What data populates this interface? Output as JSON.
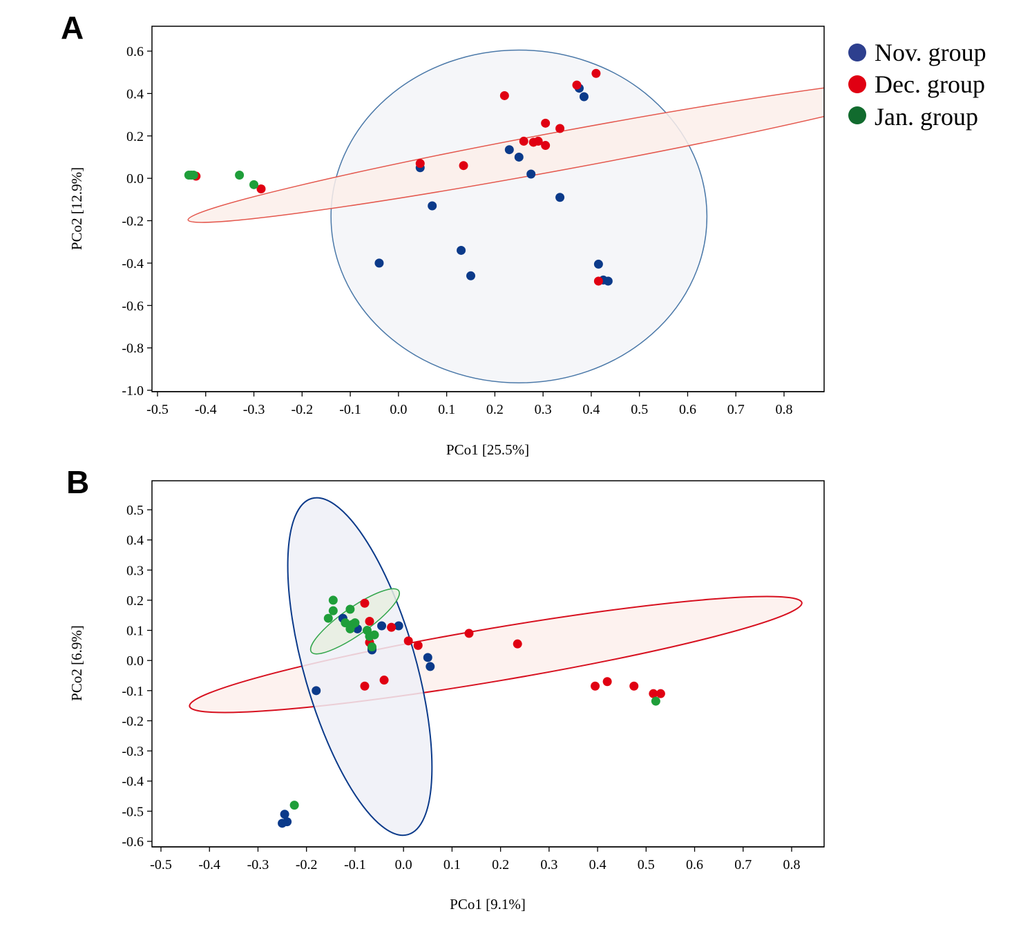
{
  "colors": {
    "nov": "#0b3a8a",
    "dec": "#e00012",
    "jan": "#1f9e3a",
    "legend_nov": "#2d3f8e",
    "legend_dec": "#e00012",
    "legend_jan": "#116b2e"
  },
  "legend": {
    "items": [
      {
        "label": "Nov. group",
        "color_key": "legend_nov"
      },
      {
        "label": "Dec. group",
        "color_key": "legend_dec"
      },
      {
        "label": "Jan. group",
        "color_key": "legend_jan"
      }
    ]
  },
  "chart_data": [
    {
      "panel": "A",
      "type": "scatter",
      "xlabel": "PCo1 [25.5%]",
      "ylabel": "PCo2 [12.9%]",
      "xlim": [
        -0.52,
        0.88
      ],
      "ylim": [
        -1.02,
        0.72
      ],
      "xticks": [
        -0.5,
        -0.4,
        -0.3,
        -0.2,
        -0.1,
        0.0,
        0.1,
        0.2,
        0.3,
        0.4,
        0.5,
        0.6,
        0.7,
        0.8
      ],
      "xtick_labels": [
        "-0.5",
        "-0.4",
        "-0.3",
        "-0.2",
        "-0.1",
        "0.0",
        "0.1",
        "0.2",
        "0.3",
        "0.4",
        "0.5",
        "0.6",
        "0.7",
        "0.8"
      ],
      "yticks": [
        0.6,
        0.4,
        0.2,
        0.0,
        -0.2,
        -0.4,
        -0.6,
        -0.8,
        -1.0
      ],
      "ytick_labels": [
        "0.6",
        "0.4",
        "0.2",
        "0.0",
        "-0.2",
        "-0.4",
        "-0.6",
        "-0.8",
        "-1.0"
      ],
      "grid": false,
      "ellipses": [
        {
          "series": "nov",
          "center": [
            0.25,
            -0.18
          ],
          "rx": 0.39,
          "ry": 0.785,
          "angle_deg": 0,
          "fill": "#f3f4f8",
          "stroke": "#4a78a8",
          "stroke_width": 1.5
        },
        {
          "series": "dec",
          "center": [
            0.35,
            0.135
          ],
          "rx": 0.8,
          "ry": 0.09,
          "angle_deg": 10.5,
          "fill": "#fcefea",
          "stroke": "#e4574d",
          "stroke_width": 1.5
        }
      ],
      "series": [
        {
          "key": "nov",
          "points": [
            [
              0.375,
              0.425
            ],
            [
              0.385,
              0.385
            ],
            [
              0.23,
              0.135
            ],
            [
              0.25,
              0.1
            ],
            [
              0.275,
              0.02
            ],
            [
              0.045,
              0.05
            ],
            [
              0.07,
              -0.13
            ],
            [
              0.335,
              -0.09
            ],
            [
              0.13,
              -0.34
            ],
            [
              0.15,
              -0.46
            ],
            [
              -0.04,
              -0.4
            ],
            [
              0.415,
              -0.405
            ],
            [
              0.425,
              -0.48
            ],
            [
              0.435,
              -0.485
            ]
          ]
        },
        {
          "key": "dec",
          "points": [
            [
              0.41,
              0.495
            ],
            [
              0.37,
              0.44
            ],
            [
              0.22,
              0.39
            ],
            [
              0.305,
              0.26
            ],
            [
              0.335,
              0.235
            ],
            [
              0.26,
              0.175
            ],
            [
              0.28,
              0.17
            ],
            [
              0.29,
              0.175
            ],
            [
              0.305,
              0.155
            ],
            [
              0.045,
              0.07
            ],
            [
              0.135,
              0.06
            ],
            [
              -0.42,
              0.01
            ],
            [
              -0.285,
              -0.05
            ],
            [
              0.415,
              -0.485
            ]
          ]
        },
        {
          "key": "jan",
          "points": [
            [
              -0.435,
              0.015
            ],
            [
              -0.43,
              0.015
            ],
            [
              -0.425,
              0.015
            ],
            [
              -0.33,
              0.015
            ],
            [
              -0.3,
              -0.03
            ]
          ]
        }
      ]
    },
    {
      "panel": "B",
      "type": "scatter",
      "xlabel": "PCo1 [9.1%]",
      "ylabel": "PCo2 [6.9%]",
      "xlim": [
        -0.52,
        0.87
      ],
      "ylim": [
        -0.62,
        0.57
      ],
      "xticks": [
        -0.5,
        -0.4,
        -0.3,
        -0.2,
        -0.1,
        0.0,
        0.1,
        0.2,
        0.3,
        0.4,
        0.5,
        0.6,
        0.7,
        0.8
      ],
      "xtick_labels": [
        "-0.5",
        "-0.4",
        "-0.3",
        "-0.2",
        "-0.1",
        "0.0",
        "0.1",
        "0.2",
        "0.3",
        "0.4",
        "0.5",
        "0.6",
        "0.7",
        "0.8"
      ],
      "yticks": [
        0.5,
        0.4,
        0.3,
        0.2,
        0.1,
        0.0,
        -0.1,
        -0.2,
        -0.3,
        -0.4,
        -0.5,
        -0.6
      ],
      "ytick_labels": [
        "0.5",
        "0.4",
        "0.3",
        "0.2",
        "0.1",
        "0.0",
        "-0.1",
        "-0.2",
        "-0.3",
        "-0.4",
        "-0.5",
        "-0.6"
      ],
      "grid": false,
      "ellipses": [
        {
          "series": "dec",
          "center": [
            0.19,
            0.02
          ],
          "rx": 0.64,
          "ry": 0.088,
          "angle_deg": 9.6,
          "fill": "#fdf0ec",
          "stroke": "#d7101f",
          "stroke_width": 2
        },
        {
          "series": "nov",
          "center": [
            -0.09,
            -0.02
          ],
          "rx": 0.115,
          "ry": 0.58,
          "angle_deg": 16,
          "fill": "#eef0f7",
          "stroke": "#0b3a8a",
          "stroke_width": 2
        },
        {
          "series": "jan",
          "center": [
            -0.1,
            0.13
          ],
          "rx": 0.11,
          "ry": 0.045,
          "angle_deg": 35,
          "fill": "#e7efe0",
          "stroke": "#33a64c",
          "stroke_width": 1.5
        }
      ],
      "series": [
        {
          "key": "nov",
          "points": [
            [
              -0.125,
              0.14
            ],
            [
              -0.045,
              0.115
            ],
            [
              -0.01,
              0.115
            ],
            [
              -0.095,
              0.105
            ],
            [
              -0.065,
              0.04
            ],
            [
              -0.065,
              0.035
            ],
            [
              0.05,
              0.01
            ],
            [
              0.055,
              -0.02
            ],
            [
              -0.18,
              -0.1
            ],
            [
              -0.245,
              -0.51
            ],
            [
              -0.24,
              -0.535
            ],
            [
              -0.25,
              -0.54
            ]
          ]
        },
        {
          "key": "dec",
          "points": [
            [
              -0.08,
              0.19
            ],
            [
              -0.07,
              0.13
            ],
            [
              -0.025,
              0.11
            ],
            [
              0.01,
              0.065
            ],
            [
              0.03,
              0.05
            ],
            [
              0.135,
              0.09
            ],
            [
              0.235,
              0.055
            ],
            [
              -0.07,
              0.06
            ],
            [
              -0.08,
              -0.085
            ],
            [
              -0.04,
              -0.065
            ],
            [
              0.395,
              -0.085
            ],
            [
              0.42,
              -0.07
            ],
            [
              0.475,
              -0.085
            ],
            [
              0.515,
              -0.11
            ],
            [
              0.53,
              -0.11
            ]
          ]
        },
        {
          "key": "jan",
          "points": [
            [
              -0.145,
              0.2
            ],
            [
              -0.145,
              0.165
            ],
            [
              -0.155,
              0.14
            ],
            [
              -0.12,
              0.125
            ],
            [
              -0.105,
              0.12
            ],
            [
              -0.1,
              0.125
            ],
            [
              -0.11,
              0.105
            ],
            [
              -0.11,
              0.17
            ],
            [
              -0.075,
              0.1
            ],
            [
              -0.07,
              0.08
            ],
            [
              -0.06,
              0.085
            ],
            [
              -0.065,
              0.045
            ],
            [
              0.52,
              -0.135
            ],
            [
              -0.225,
              -0.48
            ]
          ]
        }
      ]
    }
  ]
}
